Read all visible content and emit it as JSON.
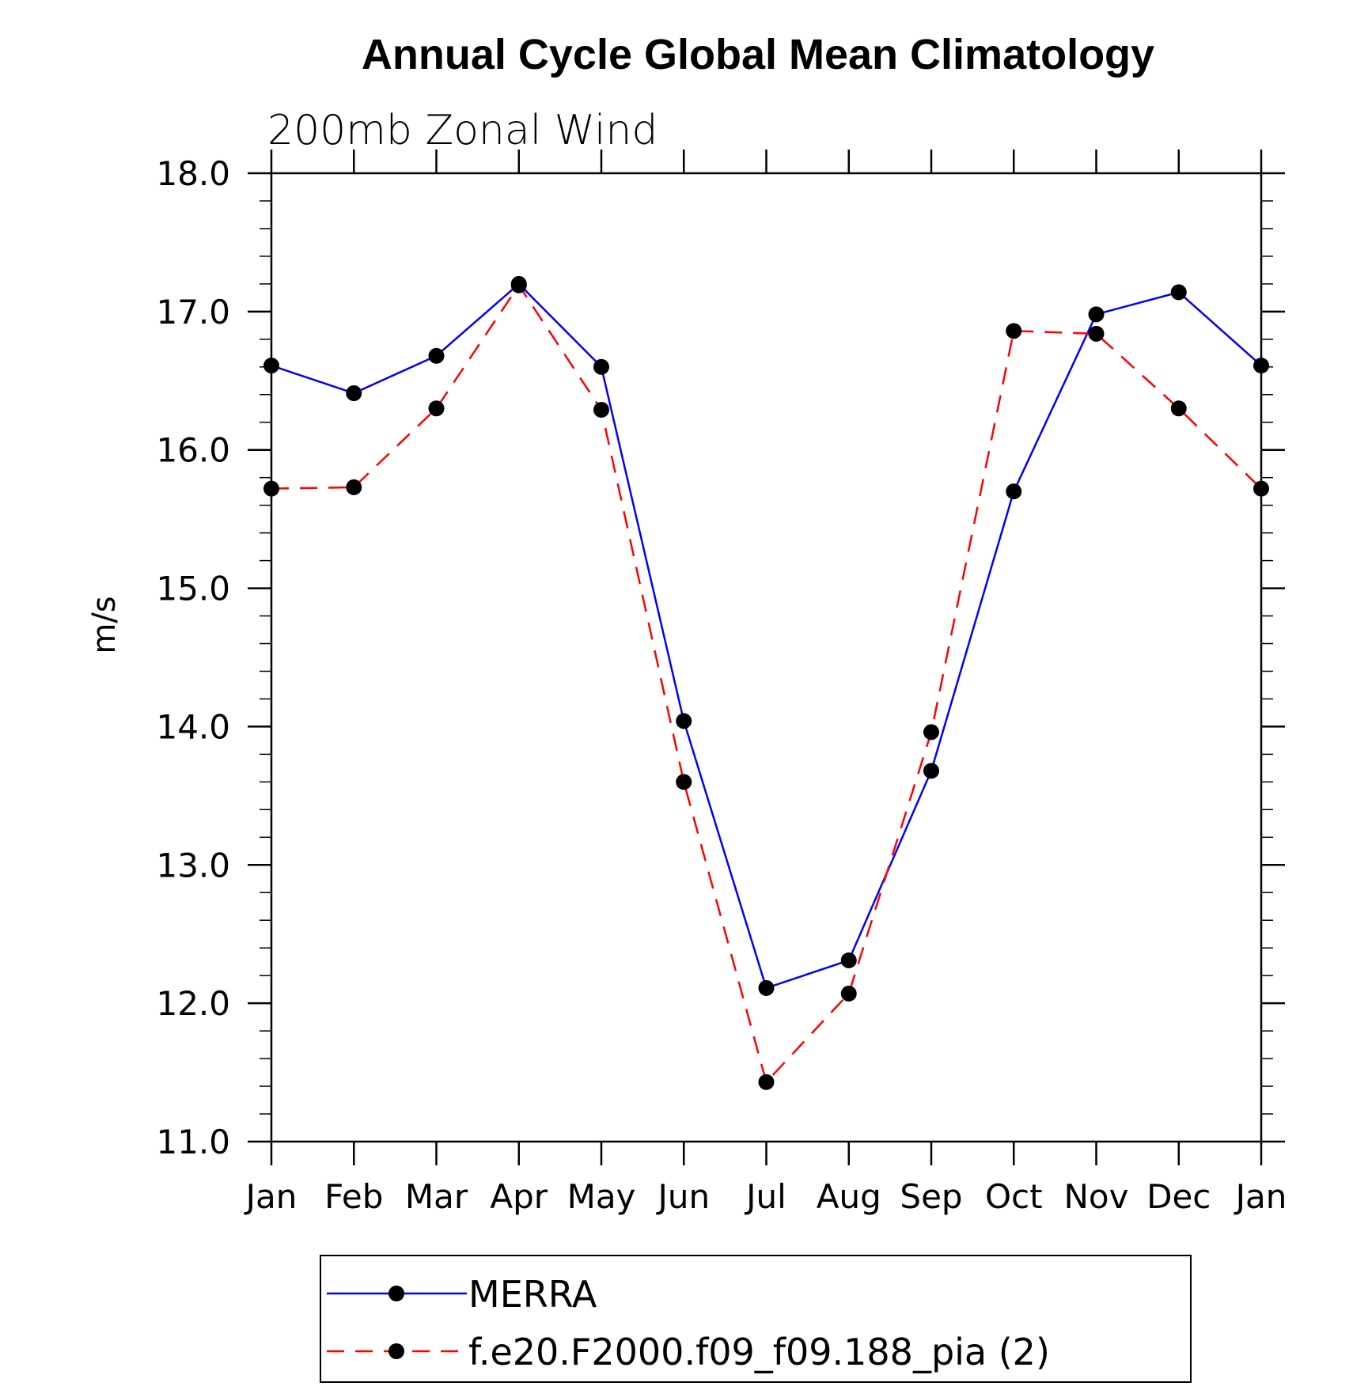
{
  "chart_data": {
    "type": "line",
    "title": "Annual Cycle Global Mean Climatology",
    "subtitle": "200mb Zonal Wind",
    "xlabel": "",
    "ylabel": "m/s",
    "categories": [
      "Jan",
      "Feb",
      "Mar",
      "Apr",
      "May",
      "Jun",
      "Jul",
      "Aug",
      "Sep",
      "Oct",
      "Nov",
      "Dec",
      "Jan"
    ],
    "ylim": [
      11.0,
      18.0
    ],
    "yticks": [
      11.0,
      12.0,
      13.0,
      14.0,
      15.0,
      16.0,
      17.0,
      18.0
    ],
    "ytick_labels": [
      "11.0",
      "12.0",
      "13.0",
      "14.0",
      "15.0",
      "16.0",
      "17.0",
      "18.0"
    ],
    "grid": false,
    "legend_position": "bottom",
    "series": [
      {
        "name": "MERRA",
        "color": "#0000ff",
        "line_style": "solid",
        "marker": "filled-circle",
        "values": [
          16.61,
          16.41,
          16.68,
          17.2,
          16.6,
          14.04,
          12.11,
          12.31,
          13.68,
          15.7,
          16.98,
          17.14,
          16.61
        ]
      },
      {
        "name": "f.e20.F2000.f09_f09.188_pia (2)",
        "color": "#ff0000",
        "line_style": "dashed",
        "marker": "filled-circle",
        "values": [
          15.72,
          15.73,
          16.3,
          17.19,
          16.29,
          13.6,
          11.43,
          12.07,
          13.96,
          16.86,
          16.84,
          16.3,
          15.72
        ]
      }
    ]
  }
}
